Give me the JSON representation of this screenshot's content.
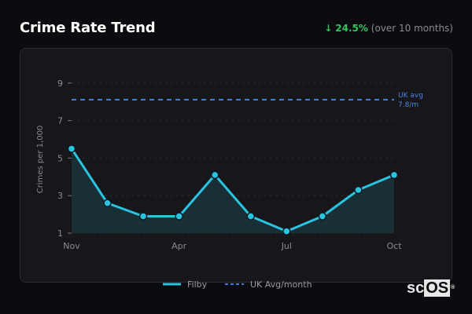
{
  "header": {
    "title": "Crime Rate Trend",
    "trend_arrow": "↓",
    "trend_value": "24.5%",
    "trend_note": "(over 10 months)",
    "trend_color": "#34c35c"
  },
  "chart": {
    "ylabel": "Crimes per 1,000",
    "yticks": [
      "9",
      "7",
      "5",
      "3",
      "1"
    ],
    "xticks": [
      "Nov",
      "Apr",
      "Jul",
      "Oct"
    ],
    "ref_label_line1": "UK avg",
    "ref_label_line2": "7.8/m",
    "legend": {
      "series1": "Filby",
      "series2": "UK Avg/month"
    },
    "colors": {
      "line": "#2bc4e0",
      "area": "#1b3238",
      "ref": "#3d7fe0"
    }
  },
  "chart_data": {
    "type": "line",
    "title": "Crime Rate Trend",
    "subtitle": "↓ 24.5% (over 10 months)",
    "xlabel": "",
    "ylabel": "Crimes per 1,000",
    "x": [
      "Nov",
      "",
      "",
      "Apr",
      "",
      "",
      "Jul",
      "",
      "",
      "Oct"
    ],
    "x_tick_labels": [
      "Nov",
      "Apr",
      "Jul",
      "Oct"
    ],
    "ylim": [
      1,
      9.5
    ],
    "yticks": [
      1,
      3,
      5,
      7,
      9
    ],
    "grid": true,
    "legend_position": "bottom",
    "series": [
      {
        "name": "Filby",
        "style": "solid line with markers, filled area",
        "values": [
          5.5,
          2.6,
          1.9,
          1.9,
          4.1,
          1.9,
          1.1,
          1.9,
          3.3,
          4.1
        ]
      },
      {
        "name": "UK Avg/month",
        "style": "dashed horizontal reference",
        "values": [
          7.8,
          7.8,
          7.8,
          7.8,
          7.8,
          7.8,
          7.8,
          7.8,
          7.8,
          7.8
        ]
      }
    ],
    "annotations": [
      "UK avg 7.8/m"
    ]
  },
  "watermark": {
    "text1": "sc",
    "text2": "OS",
    "reg": "®"
  }
}
